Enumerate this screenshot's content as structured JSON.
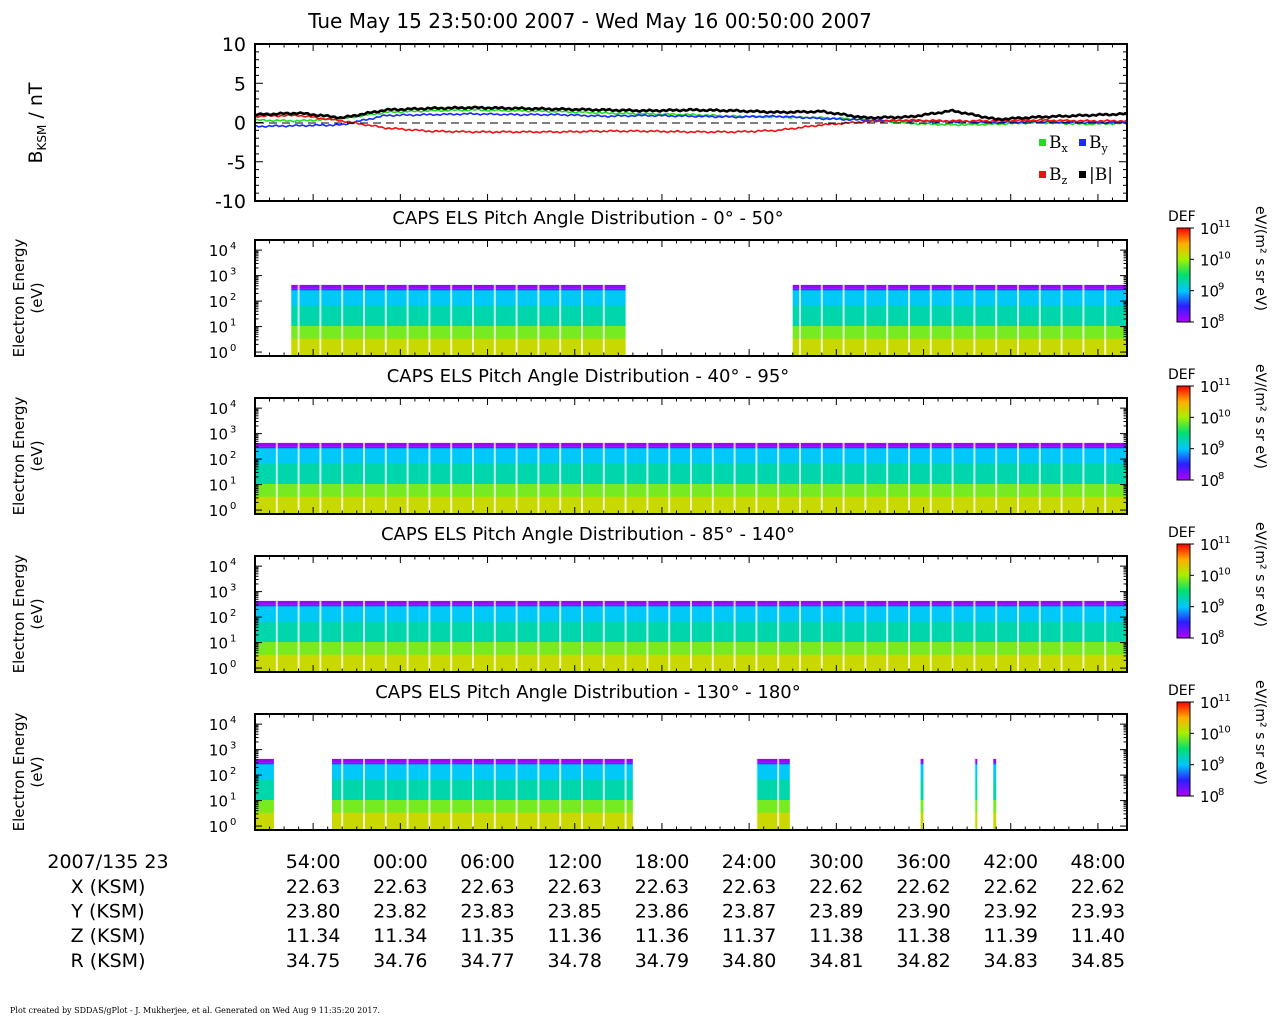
{
  "plot_title": "Tue May 15 23:50:00 2007 - Wed May 16 00:50:00 2007",
  "footer": "Plot created by SDDAS/gPlot - J. Mukherjee, et al.  Generated on Wed Aug 9 11:35:20 2017.",
  "colors": {
    "bx": "#22dd22",
    "by": "#1a2bff",
    "bz": "#ee1111",
    "bmag": "#000000"
  },
  "chart_data": [
    {
      "type": "line",
      "panel": "magnetic-field",
      "ylabel": "B",
      "ylabel_subscript": "KSM",
      "ylabel_unit": " / nT",
      "ylim": [
        -10,
        10
      ],
      "yticks": [
        "10",
        "5",
        "0",
        "-5",
        "-10"
      ],
      "ytick_values": [
        10,
        5,
        0,
        -5,
        -10
      ],
      "x_minutes": [
        0,
        3,
        6,
        9,
        12,
        15,
        18,
        21,
        24,
        27,
        30,
        33,
        36,
        39,
        42,
        45,
        48,
        51,
        54,
        57,
        60
      ],
      "series": [
        {
          "name": "B",
          "name_sub": "x",
          "color": "#22dd22",
          "values": [
            0.3,
            0.2,
            0.5,
            1.3,
            1.5,
            1.6,
            1.5,
            1.4,
            1.2,
            1.1,
            1.0,
            0.8,
            0.7,
            0.6,
            0.4,
            -0.1,
            -0.3,
            -0.2,
            0.0,
            -0.2,
            -0.1
          ]
        },
        {
          "name": "B",
          "name_sub": "y",
          "color": "#1a2bff",
          "values": [
            -0.5,
            -0.4,
            -0.3,
            0.9,
            1.0,
            1.1,
            1.0,
            1.0,
            0.8,
            0.9,
            0.8,
            0.7,
            0.8,
            0.5,
            0.3,
            0.2,
            0.1,
            0.0,
            0.1,
            0.0,
            0.0
          ]
        },
        {
          "name": "B",
          "name_sub": "z",
          "color": "#ee1111",
          "values": [
            0.8,
            0.9,
            0.2,
            -0.7,
            -1.1,
            -1.2,
            -1.2,
            -1.2,
            -1.1,
            -1.1,
            -1.2,
            -1.2,
            -1.0,
            -0.3,
            0.1,
            0.3,
            0.2,
            0.2,
            0.3,
            0.2,
            0.2
          ]
        },
        {
          "name": "|B|",
          "name_sub": "",
          "color": "#000000",
          "values": [
            1.0,
            1.2,
            0.6,
            1.6,
            1.8,
            1.9,
            1.8,
            1.7,
            1.6,
            1.5,
            1.6,
            1.5,
            1.3,
            1.4,
            0.6,
            0.7,
            1.5,
            0.4,
            0.7,
            0.9,
            1.1
          ]
        }
      ]
    },
    {
      "type": "heatmap",
      "panel": "pad-0-50",
      "title": "CAPS ELS Pitch Angle Distribution - 0° - 50°",
      "ylabel_line1": "Electron Energy",
      "ylabel_line2": "(eV)",
      "ytick_values": [
        1,
        10,
        100,
        1000,
        10000
      ],
      "ylim": [
        0.7,
        25000
      ],
      "data_intervals_minutes": [
        [
          2.5,
          25.5
        ],
        [
          37.0,
          60.0
        ]
      ],
      "z_label": "DEF",
      "z_units": "eV/(m² s sr eV)",
      "z_range": [
        100000000.0,
        100000000000.0
      ]
    },
    {
      "type": "heatmap",
      "panel": "pad-40-95",
      "title": "CAPS ELS Pitch Angle Distribution - 40° - 95°",
      "ylabel_line1": "Electron Energy",
      "ylabel_line2": "(eV)",
      "ytick_values": [
        1,
        10,
        100,
        1000,
        10000
      ],
      "ylim": [
        0.7,
        25000
      ],
      "data_intervals_minutes": [
        [
          0.0,
          60.0
        ]
      ],
      "z_label": "DEF",
      "z_units": "eV/(m² s sr eV)",
      "z_range": [
        100000000.0,
        100000000000.0
      ]
    },
    {
      "type": "heatmap",
      "panel": "pad-85-140",
      "title": "CAPS ELS Pitch Angle Distribution - 85° - 140°",
      "ylabel_line1": "Electron Energy",
      "ylabel_line2": "(eV)",
      "ytick_values": [
        1,
        10,
        100,
        1000,
        10000
      ],
      "ylim": [
        0.7,
        25000
      ],
      "data_intervals_minutes": [
        [
          0.0,
          60.0
        ]
      ],
      "z_label": "DEF",
      "z_units": "eV/(m² s sr eV)",
      "z_range": [
        100000000.0,
        100000000000.0
      ]
    },
    {
      "type": "heatmap",
      "panel": "pad-130-180",
      "title": "CAPS ELS Pitch Angle Distribution - 130° - 180°",
      "ylabel_line1": "Electron Energy",
      "ylabel_line2": "(eV)",
      "ytick_values": [
        1,
        10,
        100,
        1000,
        10000
      ],
      "ylim": [
        0.7,
        25000
      ],
      "data_intervals_minutes": [
        [
          0.0,
          1.3
        ],
        [
          5.3,
          26.0
        ],
        [
          34.5,
          36.8
        ],
        [
          45.8,
          46.0
        ],
        [
          49.5,
          49.7
        ],
        [
          50.8,
          51.0
        ]
      ],
      "z_label": "DEF",
      "z_units": "eV/(m² s sr eV)",
      "z_range": [
        100000000.0,
        100000000000.0
      ]
    }
  ],
  "time_axis": {
    "start_label": "2007/135 23",
    "tick_minutes": [
      4,
      10,
      16,
      22,
      28,
      34,
      40,
      46,
      52,
      58
    ],
    "tick_labels": [
      "54:00",
      "00:00",
      "06:00",
      "12:00",
      "18:00",
      "24:00",
      "30:00",
      "36:00",
      "42:00",
      "48:00"
    ]
  },
  "ephemeris": {
    "rows": [
      {
        "label": "X (KSM)",
        "values": [
          "22.63",
          "22.63",
          "22.63",
          "22.63",
          "22.63",
          "22.63",
          "22.62",
          "22.62",
          "22.62",
          "22.62"
        ]
      },
      {
        "label": "Y (KSM)",
        "values": [
          "23.80",
          "23.82",
          "23.83",
          "23.85",
          "23.86",
          "23.87",
          "23.89",
          "23.90",
          "23.92",
          "23.93"
        ]
      },
      {
        "label": "Z (KSM)",
        "values": [
          "11.34",
          "11.34",
          "11.35",
          "11.36",
          "11.36",
          "11.37",
          "11.38",
          "11.38",
          "11.39",
          "11.40"
        ]
      },
      {
        "label": "R (KSM)",
        "values": [
          "34.75",
          "34.76",
          "34.77",
          "34.78",
          "34.79",
          "34.80",
          "34.81",
          "34.82",
          "34.83",
          "34.85"
        ]
      }
    ]
  }
}
